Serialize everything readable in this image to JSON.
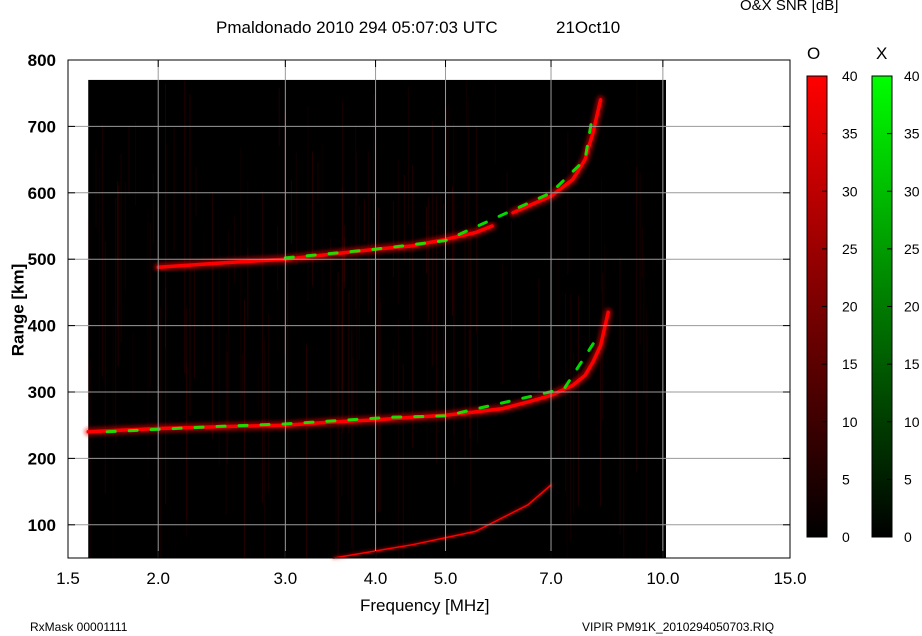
{
  "header": {
    "title": "Pmaldonado 2010 294 05:07:03 UTC",
    "date": "21Oct10",
    "snr_label": "O&X SNR [dB]"
  },
  "footer": {
    "rxmask": "RxMask 00001111",
    "file": "VIPIR  PM91K_2010294050703.RIQ"
  },
  "colorbars": {
    "o_label": "O",
    "x_label": "X",
    "o_color": "#ff0000",
    "x_color": "#00ff00",
    "ticks": [
      "40",
      "35",
      "30",
      "25",
      "20",
      "15",
      "10",
      "5",
      "0"
    ]
  },
  "chart_data": {
    "type": "heatmap",
    "title": "Pmaldonado 2010 294 05:07:03 UTC",
    "xlabel": "Frequency [MHz]",
    "ylabel": "Range [km]",
    "x_scale": "log",
    "xlim": [
      1.5,
      15.0
    ],
    "ylim": [
      50,
      800
    ],
    "x_ticks": [
      1.5,
      2.0,
      3.0,
      4.0,
      5.0,
      7.0,
      10.0,
      15.0
    ],
    "x_tick_labels": [
      "1.5",
      "2.0",
      "3.0",
      "4.0",
      "5.0",
      "7.0",
      "10.0",
      "15.0"
    ],
    "y_ticks": [
      100,
      200,
      300,
      400,
      500,
      600,
      700,
      800
    ],
    "y_tick_labels": [
      "100",
      "200",
      "300",
      "400",
      "500",
      "600",
      "700",
      "800"
    ],
    "grid": true,
    "data_extent": {
      "freq_mhz": [
        1.6,
        10.1
      ],
      "range_km": [
        50,
        770
      ]
    },
    "colorbar_range_db": [
      0,
      40
    ],
    "series": [
      {
        "name": "O",
        "color": "#ff0000",
        "traces": [
          {
            "freq": [
              1.6,
              2.0,
              2.5,
              3.0,
              3.5,
              4.0,
              4.5,
              5.0,
              5.5,
              6.0,
              6.5,
              7.0,
              7.5,
              7.8,
              8.0,
              8.2,
              8.4
            ],
            "range": [
              240,
              245,
              248,
              250,
              255,
              258,
              262,
              265,
              270,
              275,
              285,
              295,
              310,
              325,
              345,
              370,
              420
            ]
          },
          {
            "freq": [
              2.0,
              2.5,
              3.0,
              3.5,
              4.0,
              4.5,
              5.0,
              5.5,
              5.8
            ],
            "range": [
              488,
              495,
              500,
              508,
              515,
              520,
              530,
              540,
              550
            ]
          },
          {
            "freq": [
              6.2,
              6.5,
              7.0,
              7.5,
              7.8,
              8.0,
              8.2
            ],
            "range": [
              570,
              580,
              595,
              620,
              650,
              690,
              740
            ]
          },
          {
            "freq": [
              3.5,
              4.5,
              5.5,
              6.5,
              7.0
            ],
            "range": [
              50,
              70,
              90,
              130,
              160
            ]
          }
        ]
      },
      {
        "name": "X",
        "color": "#00ff00",
        "traces": [
          {
            "freq": [
              1.7,
              2.4,
              3.0,
              4.2,
              5.0,
              7.3,
              8.2
            ],
            "range": [
              240,
              248,
              252,
              262,
              264,
              305,
              390
            ]
          },
          {
            "freq": [
              3.0,
              4.0,
              5.0,
              7.0,
              7.8,
              8.0
            ],
            "range": [
              502,
              515,
              528,
              600,
              650,
              720
            ]
          }
        ]
      }
    ]
  }
}
